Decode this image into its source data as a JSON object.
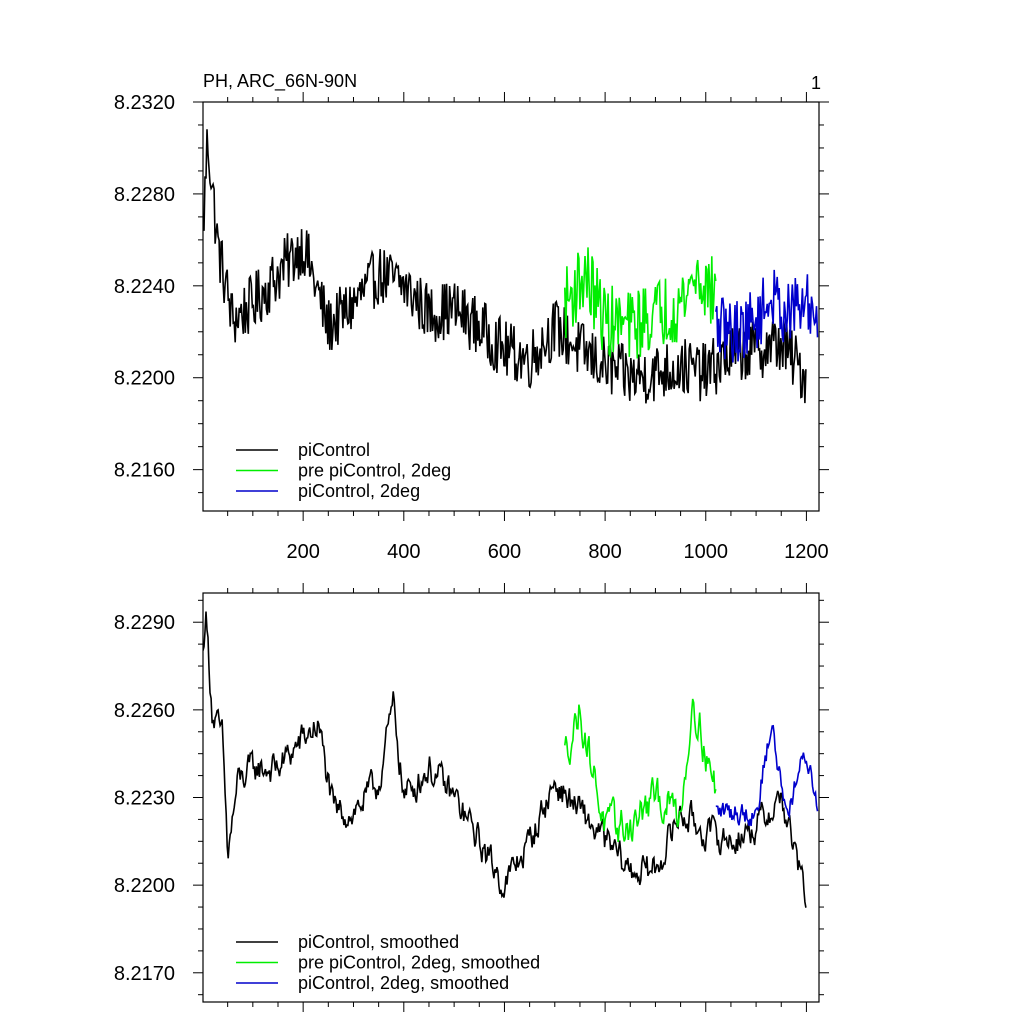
{
  "chart_data": [
    {
      "type": "line",
      "title": "PH, ARC_66N-90N",
      "corner_label": "1",
      "xlim": [
        1,
        1225
      ],
      "ylim": [
        8.2142,
        8.232
      ],
      "yticks": [
        "8.2320",
        "8.2280",
        "8.2240",
        "8.2200",
        "8.2160"
      ],
      "ytick_values": [
        8.232,
        8.228,
        8.224,
        8.22,
        8.216
      ],
      "xticks": [
        "200",
        "400",
        "600",
        "800",
        "1000",
        "1200"
      ],
      "xtick_values": [
        200,
        400,
        600,
        800,
        1000,
        1200
      ],
      "legend_position": "bottom-left",
      "series": [
        {
          "name": "piControl",
          "color": "#000000",
          "x_range": [
            1,
            1200
          ],
          "mean": 8.2232,
          "amplitude": 0.0013,
          "anchors": [
            [
              1,
              8.2262
            ],
            [
              10,
              8.2305
            ],
            [
              30,
              8.2258
            ],
            [
              60,
              8.2225
            ],
            [
              100,
              8.2232
            ],
            [
              150,
              8.2245
            ],
            [
              200,
              8.2258
            ],
            [
              250,
              8.2222
            ],
            [
              300,
              8.2232
            ],
            [
              350,
              8.2245
            ],
            [
              400,
              8.224
            ],
            [
              450,
              8.2228
            ],
            [
              500,
              8.223
            ],
            [
              550,
              8.2222
            ],
            [
              600,
              8.2212
            ],
            [
              650,
              8.2208
            ],
            [
              700,
              8.2222
            ],
            [
              750,
              8.2212
            ],
            [
              800,
              8.2205
            ],
            [
              850,
              8.22
            ],
            [
              900,
              8.2202
            ],
            [
              950,
              8.2205
            ],
            [
              1000,
              8.2202
            ],
            [
              1050,
              8.221
            ],
            [
              1100,
              8.2212
            ],
            [
              1150,
              8.2215
            ],
            [
              1200,
              8.22
            ]
          ]
        },
        {
          "name": "pre piControl, 2deg",
          "color": "#00ee00",
          "x_range": [
            720,
            1020
          ],
          "mean": 8.2228,
          "amplitude": 0.0016,
          "anchors": [
            [
              720,
              8.2232
            ],
            [
              760,
              8.2245
            ],
            [
              800,
              8.2225
            ],
            [
              850,
              8.2222
            ],
            [
              900,
              8.2228
            ],
            [
              950,
              8.2232
            ],
            [
              980,
              8.2245
            ],
            [
              1020,
              8.2235
            ]
          ]
        },
        {
          "name": "piControl, 2deg",
          "color": "#0000cc",
          "x_range": [
            1020,
            1222
          ],
          "mean": 8.2225,
          "amplitude": 0.0014,
          "anchors": [
            [
              1020,
              8.2222
            ],
            [
              1060,
              8.222
            ],
            [
              1100,
              8.2225
            ],
            [
              1130,
              8.2235
            ],
            [
              1160,
              8.2228
            ],
            [
              1200,
              8.2232
            ],
            [
              1222,
              8.2228
            ]
          ]
        }
      ]
    },
    {
      "type": "line",
      "xlim": [
        1,
        1225
      ],
      "ylim": [
        8.216,
        8.23
      ],
      "yticks": [
        "8.2290",
        "8.2260",
        "8.2230",
        "8.2200",
        "8.2170"
      ],
      "ytick_values": [
        8.229,
        8.226,
        8.223,
        8.22,
        8.217
      ],
      "legend_position": "bottom-left",
      "series": [
        {
          "name": "piControl, smoothed",
          "color": "#000000",
          "x_range": [
            1,
            1200
          ],
          "mean": 8.2232,
          "amplitude": 0.001,
          "anchors": [
            [
              1,
              8.2278
            ],
            [
              6,
              8.2295
            ],
            [
              20,
              8.2258
            ],
            [
              40,
              8.225
            ],
            [
              50,
              8.221
            ],
            [
              70,
              8.2235
            ],
            [
              100,
              8.224
            ],
            [
              150,
              8.224
            ],
            [
              200,
              8.225
            ],
            [
              230,
              8.2255
            ],
            [
              260,
              8.2225
            ],
            [
              300,
              8.2225
            ],
            [
              350,
              8.2235
            ],
            [
              380,
              8.2262
            ],
            [
              400,
              8.223
            ],
            [
              450,
              8.224
            ],
            [
              500,
              8.223
            ],
            [
              550,
              8.2215
            ],
            [
              600,
              8.22
            ],
            [
              650,
              8.2215
            ],
            [
              700,
              8.2235
            ],
            [
              750,
              8.2225
            ],
            [
              800,
              8.2215
            ],
            [
              850,
              8.2205
            ],
            [
              900,
              8.2205
            ],
            [
              950,
              8.2225
            ],
            [
              1000,
              8.2218
            ],
            [
              1050,
              8.2215
            ],
            [
              1100,
              8.222
            ],
            [
              1150,
              8.223
            ],
            [
              1200,
              8.2195
            ]
          ]
        },
        {
          "name": "pre piControl, 2deg, smoothed",
          "color": "#00ee00",
          "x_range": [
            720,
            1020
          ],
          "mean": 8.2228,
          "amplitude": 0.0012,
          "anchors": [
            [
              720,
              8.2245
            ],
            [
              750,
              8.226
            ],
            [
              800,
              8.222
            ],
            [
              850,
              8.222
            ],
            [
              900,
              8.223
            ],
            [
              950,
              8.2225
            ],
            [
              975,
              8.2265
            ],
            [
              1000,
              8.2245
            ],
            [
              1020,
              8.2232
            ]
          ]
        },
        {
          "name": "piControl, 2deg, smoothed",
          "color": "#0000cc",
          "x_range": [
            1020,
            1222
          ],
          "mean": 8.223,
          "amplitude": 0.0008,
          "anchors": [
            [
              1020,
              8.2225
            ],
            [
              1060,
              8.2225
            ],
            [
              1100,
              8.2225
            ],
            [
              1130,
              8.2255
            ],
            [
              1160,
              8.2225
            ],
            [
              1200,
              8.2245
            ],
            [
              1222,
              8.2228
            ]
          ]
        }
      ]
    }
  ]
}
